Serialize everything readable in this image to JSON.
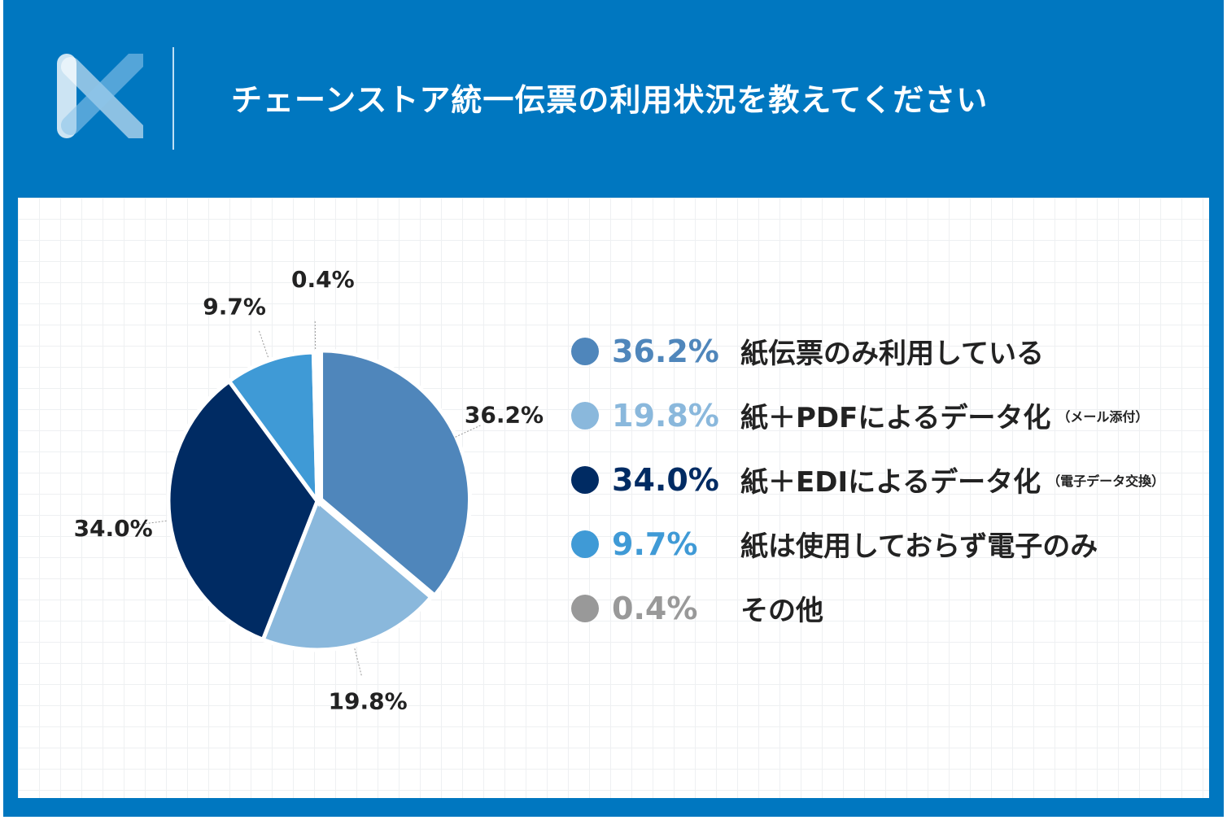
{
  "header": {
    "title": "チェーンストア統一伝票の利用状況を教えてください",
    "logo_text": "X"
  },
  "chart_data": {
    "type": "pie",
    "start": "top",
    "direction": "clockwise",
    "slices": [
      {
        "label": "紙伝票のみ利用している",
        "note": "",
        "value": 36.2,
        "display": "36.2%",
        "color": "#4f86bb"
      },
      {
        "label": "紙＋PDFによるデータ化",
        "note": "（メール添付）",
        "value": 19.8,
        "display": "19.8%",
        "color": "#8ab8dc"
      },
      {
        "label": "紙＋EDIによるデータ化",
        "note": "（電子データ交換）",
        "value": 34.0,
        "display": "34.0%",
        "color": "#002b63"
      },
      {
        "label": "紙は使用しておらず電子のみ",
        "note": "",
        "value": 9.7,
        "display": "9.7%",
        "color": "#3f9ad6"
      },
      {
        "label": "その他",
        "note": "",
        "value": 0.4,
        "display": "0.4%",
        "color": "#999999"
      }
    ],
    "legend": "right"
  }
}
